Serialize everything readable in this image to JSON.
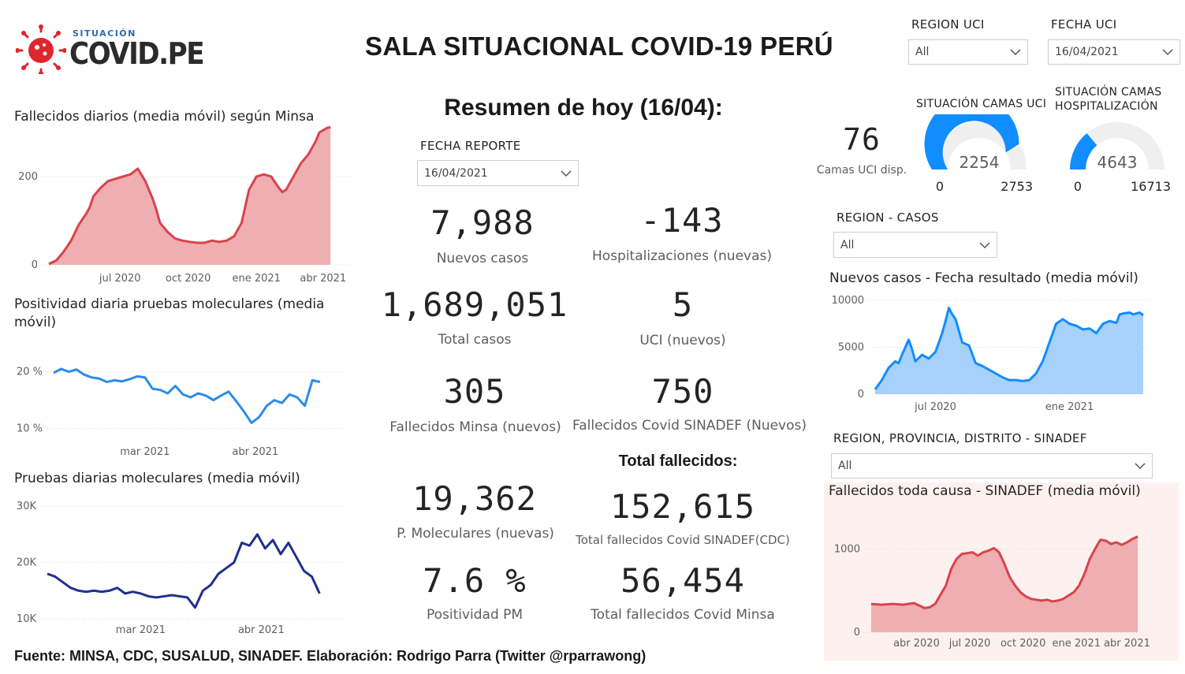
{
  "header": {
    "logo_small": "SITUACIÓN",
    "logo_big": "COVID.PE",
    "title": "SALA SITUACIONAL COVID-19 PERÚ"
  },
  "slicers": {
    "region_uci": {
      "label": "REGION UCI",
      "value": "All"
    },
    "fecha_uci": {
      "label": "FECHA UCI",
      "value": "16/04/2021"
    },
    "fecha_reporte": {
      "label": "FECHA REPORTE",
      "value": "16/04/2021"
    },
    "region_casos": {
      "label": "REGION - CASOS",
      "value": "All"
    },
    "region_sinadef": {
      "label": "REGION, PROVINCIA, DISTRITO - SINADEF",
      "value": "All"
    }
  },
  "summary": {
    "title": "Resumen de hoy (16/04):",
    "nuevos_casos": {
      "value": "7,988",
      "label": "Nuevos casos"
    },
    "hospitalizaciones": {
      "value": "-143",
      "label": "Hospitalizaciones (nuevas)"
    },
    "total_casos": {
      "value": "1,689,051",
      "label": "Total casos"
    },
    "uci_nuevos": {
      "value": "5",
      "label": "UCI (nuevos)"
    },
    "fallecidos_minsa": {
      "value": "305",
      "label": "Fallecidos Minsa (nuevos)"
    },
    "fallecidos_sinadef": {
      "value": "750",
      "label": "Fallecidos Covid SINADEF (Nuevos)"
    },
    "total_fallecidos_title": "Total fallecidos:",
    "p_moleculares": {
      "value": "19,362",
      "label": "P. Moleculares (nuevas)"
    },
    "total_sinadef": {
      "value": "152,615",
      "label": "Total fallecidos Covid SINADEF(CDC)"
    },
    "positividad": {
      "value": "7.6 %",
      "label": "Positividad PM"
    },
    "total_minsa": {
      "value": "56,454",
      "label": "Total fallecidos Covid Minsa"
    }
  },
  "uci": {
    "camas_value": "76",
    "camas_label": "Camas UCI disp.",
    "gauge_uci": {
      "title": "SITUACIÓN CAMAS UCI",
      "value": 2254,
      "value_label": "2254",
      "min_label": "0",
      "max_label": "2753",
      "min": 0,
      "max": 2753,
      "color": "#118dff"
    },
    "gauge_hosp": {
      "title_line1": "SITUACIÓN CAMAS",
      "title_line2": "HOSPITALIZACIÓN",
      "value": 4643,
      "value_label": "4643",
      "min_label": "0",
      "max_label": "16713",
      "min": 0,
      "max": 16713,
      "color": "#118dff"
    }
  },
  "footer": "Fuente: MINSA, CDC, SUSALUD, SINADEF. Elaboración: Rodrigo Parra (Twitter @rparrawong)",
  "chart_data": [
    {
      "id": "fallecidos",
      "type": "area",
      "title": "Fallecidos diarios (media móvil) según Minsa",
      "color": "#d9434b",
      "fill": "#eeaeb2",
      "ylim": [
        0,
        300
      ],
      "yticks": [
        0,
        200
      ],
      "ytick_labels": [
        "0",
        "200"
      ],
      "xlim": [
        0,
        400
      ],
      "xticks": [
        96,
        188,
        280,
        370
      ],
      "xtick_labels": [
        "jul 2020",
        "oct 2020",
        "ene 2021",
        "abr 2021"
      ],
      "x": [
        0,
        10,
        20,
        30,
        40,
        50,
        55,
        60,
        70,
        80,
        90,
        100,
        110,
        120,
        130,
        140,
        145,
        150,
        160,
        170,
        180,
        190,
        200,
        210,
        220,
        230,
        240,
        250,
        260,
        270,
        280,
        290,
        300,
        310,
        315,
        320,
        330,
        340,
        350,
        360,
        365,
        370,
        375,
        380
      ],
      "y": [
        2,
        10,
        30,
        55,
        90,
        115,
        130,
        155,
        175,
        190,
        195,
        200,
        205,
        218,
        190,
        150,
        125,
        95,
        75,
        60,
        55,
        52,
        50,
        50,
        55,
        52,
        55,
        65,
        95,
        170,
        200,
        205,
        200,
        175,
        165,
        170,
        200,
        230,
        250,
        280,
        300,
        305,
        310,
        312
      ]
    },
    {
      "id": "positividad",
      "type": "line",
      "title": "Positividad diaria pruebas moleculares (media móvil)",
      "color": "#2b8ce6",
      "ylim": [
        8,
        23
      ],
      "yticks": [
        10,
        20
      ],
      "ytick_labels": [
        "10 %",
        "20 %"
      ],
      "xlim": [
        0,
        75
      ],
      "xticks": [
        24,
        53
      ],
      "xtick_labels": [
        "mar 2021",
        "abr 2021"
      ],
      "x": [
        0,
        2,
        4,
        6,
        8,
        10,
        12,
        14,
        16,
        18,
        20,
        22,
        24,
        26,
        28,
        30,
        32,
        34,
        36,
        38,
        40,
        42,
        44,
        46,
        48,
        50,
        52,
        54,
        56,
        58,
        60,
        62,
        64,
        66,
        68,
        70
      ],
      "y": [
        19.8,
        20.5,
        20.0,
        20.4,
        19.5,
        19.0,
        18.8,
        18.2,
        18.5,
        18.3,
        18.7,
        19.2,
        19.0,
        17.0,
        16.8,
        16.2,
        17.5,
        16.0,
        15.5,
        16.2,
        15.8,
        15.0,
        15.8,
        16.5,
        14.8,
        13.0,
        11.0,
        12.0,
        14.0,
        15.0,
        14.5,
        16.0,
        15.5,
        14.0,
        18.5,
        18.2
      ]
    },
    {
      "id": "pruebas",
      "type": "line",
      "title": "Pruebas diarias moleculares (media móvil)",
      "color": "#1f2f8f",
      "ylim": [
        10000,
        31000
      ],
      "yticks": [
        10000,
        20000,
        30000
      ],
      "ytick_labels": [
        "10K",
        "20K",
        "30K"
      ],
      "xlim": [
        0,
        75
      ],
      "xticks": [
        24,
        55
      ],
      "xtick_labels": [
        "mar 2021",
        "abr 2021"
      ],
      "x": [
        0,
        2,
        4,
        6,
        8,
        10,
        12,
        14,
        16,
        18,
        20,
        22,
        24,
        26,
        28,
        30,
        32,
        34,
        36,
        38,
        40,
        42,
        44,
        46,
        48,
        50,
        52,
        54,
        56,
        58,
        60,
        62,
        64,
        66,
        68,
        70
      ],
      "y": [
        18000,
        17500,
        16500,
        15500,
        15000,
        14800,
        15000,
        14800,
        15000,
        15500,
        14500,
        14800,
        14500,
        14000,
        13800,
        14000,
        14200,
        14000,
        13800,
        12000,
        15000,
        16000,
        18000,
        19000,
        20000,
        23500,
        23000,
        25000,
        22500,
        24000,
        21500,
        23500,
        21000,
        18500,
        17500,
        14500
      ]
    },
    {
      "id": "casos",
      "type": "area",
      "title": "Nuevos casos - Fecha resultado (media móvil)",
      "color": "#118dff",
      "fill": "#a6d1fa",
      "ylim": [
        0,
        10000
      ],
      "yticks": [
        0,
        5000,
        10000
      ],
      "ytick_labels": [
        "0",
        "5000",
        "10000"
      ],
      "xlim": [
        0,
        400
      ],
      "xticks": [
        90,
        290
      ],
      "xtick_labels": [
        "jul 2020",
        "ene 2021"
      ],
      "x": [
        0,
        10,
        20,
        30,
        35,
        40,
        50,
        55,
        60,
        70,
        80,
        90,
        100,
        105,
        110,
        115,
        120,
        130,
        140,
        150,
        160,
        170,
        180,
        190,
        200,
        210,
        220,
        230,
        240,
        250,
        260,
        270,
        280,
        290,
        300,
        310,
        320,
        330,
        340,
        350,
        360,
        365,
        370,
        380,
        385,
        390,
        395,
        400
      ],
      "y": [
        500,
        1500,
        2800,
        3500,
        3300,
        4200,
        5800,
        4800,
        3500,
        4200,
        3800,
        4500,
        6500,
        7800,
        9200,
        8500,
        8000,
        5500,
        5200,
        3300,
        3000,
        2600,
        2200,
        1800,
        1500,
        1500,
        1400,
        1500,
        2200,
        3500,
        5500,
        7500,
        8000,
        7500,
        7300,
        6900,
        7000,
        6500,
        7500,
        7800,
        7600,
        8500,
        8600,
        8700,
        8500,
        8600,
        8700,
        8400
      ]
    },
    {
      "id": "sinadef",
      "type": "area",
      "title": "Fallecidos toda causa - SINADEF (media móvil)",
      "color": "#d9434b",
      "fill": "#eeaeb2",
      "ylim": [
        0,
        1250
      ],
      "yticks": [
        0,
        1000
      ],
      "ytick_labels": [
        "0",
        "1000"
      ],
      "xlim": [
        0,
        500
      ],
      "xticks": [
        85,
        185,
        285,
        385,
        480
      ],
      "xtick_labels": [
        "abr 2020",
        "jul 2020",
        "oct 2020",
        "ene 2021",
        "abr 2021"
      ],
      "x": [
        0,
        20,
        40,
        60,
        80,
        100,
        110,
        120,
        140,
        150,
        160,
        170,
        180,
        190,
        200,
        210,
        220,
        230,
        240,
        250,
        260,
        270,
        280,
        290,
        300,
        310,
        320,
        330,
        340,
        350,
        360,
        370,
        380,
        390,
        400,
        410,
        420,
        430,
        440,
        450,
        460,
        470,
        480,
        490,
        500
      ],
      "y": [
        340,
        330,
        340,
        330,
        350,
        290,
        300,
        340,
        560,
        760,
        880,
        940,
        950,
        960,
        920,
        960,
        980,
        1010,
        960,
        820,
        660,
        560,
        480,
        430,
        400,
        390,
        380,
        390,
        370,
        380,
        400,
        440,
        480,
        560,
        700,
        880,
        1000,
        1110,
        1100,
        1060,
        1080,
        1050,
        1080,
        1120,
        1150
      ]
    }
  ]
}
